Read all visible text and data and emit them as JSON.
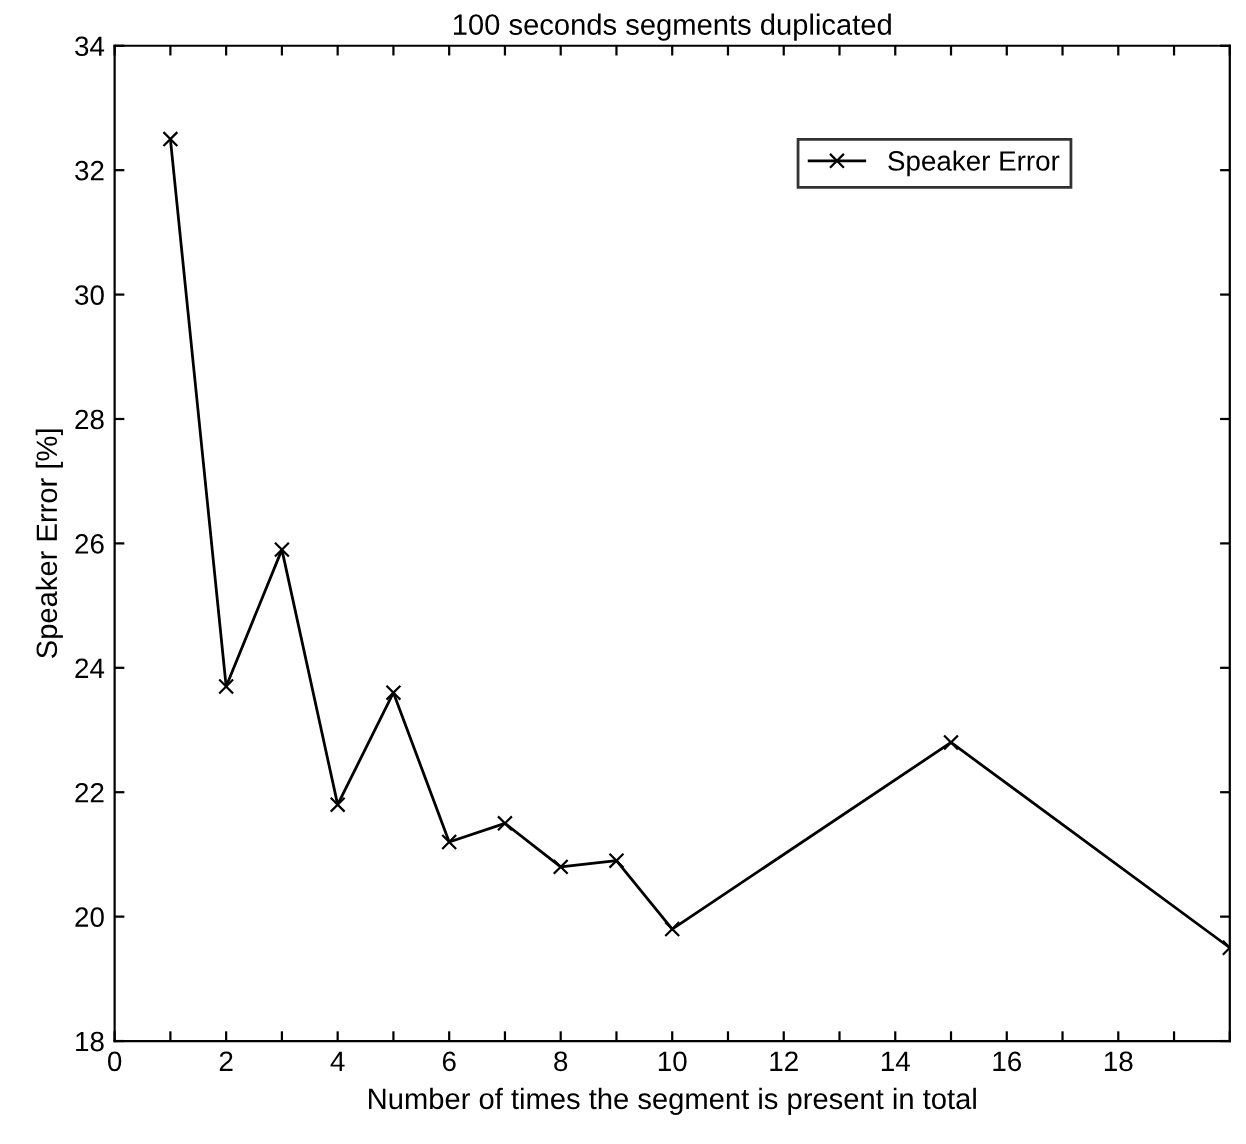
{
  "chart_data": {
    "type": "line",
    "title": "100 seconds segments duplicated",
    "xlabel": "Number of times the segment is present in total",
    "ylabel": "Speaker Error [%]",
    "x": [
      1,
      2,
      3,
      4,
      5,
      6,
      7,
      8,
      9,
      10,
      15,
      20
    ],
    "series": [
      {
        "name": "Speaker Error",
        "color": "#000000",
        "values": [
          32.5,
          23.7,
          25.9,
          21.8,
          23.6,
          21.2,
          21.5,
          20.8,
          20.9,
          19.8,
          22.8,
          19.5
        ]
      }
    ],
    "xlim": [
      0,
      20
    ],
    "xticks": [
      0,
      {
        "value": 1,
        "label": null
      },
      2,
      {
        "value": 3,
        "label": null
      },
      4,
      {
        "value": 5,
        "label": null
      },
      6,
      {
        "value": 7,
        "label": null
      },
      8,
      {
        "value": 9,
        "label": null
      },
      10,
      {
        "value": 11,
        "label": null
      },
      12,
      {
        "value": 13,
        "label": null
      },
      14,
      {
        "value": 15,
        "label": null
      },
      16,
      {
        "value": 17,
        "label": null
      },
      18,
      {
        "value": 19,
        "label": null
      },
      {
        "value": 20,
        "label": null
      }
    ],
    "ylim": [
      18,
      34
    ],
    "yticks": [
      18,
      20,
      22,
      24,
      26,
      28,
      30,
      32,
      34
    ],
    "marker": "cross",
    "line_style": "solid",
    "grid": false,
    "legend": "top right"
  }
}
